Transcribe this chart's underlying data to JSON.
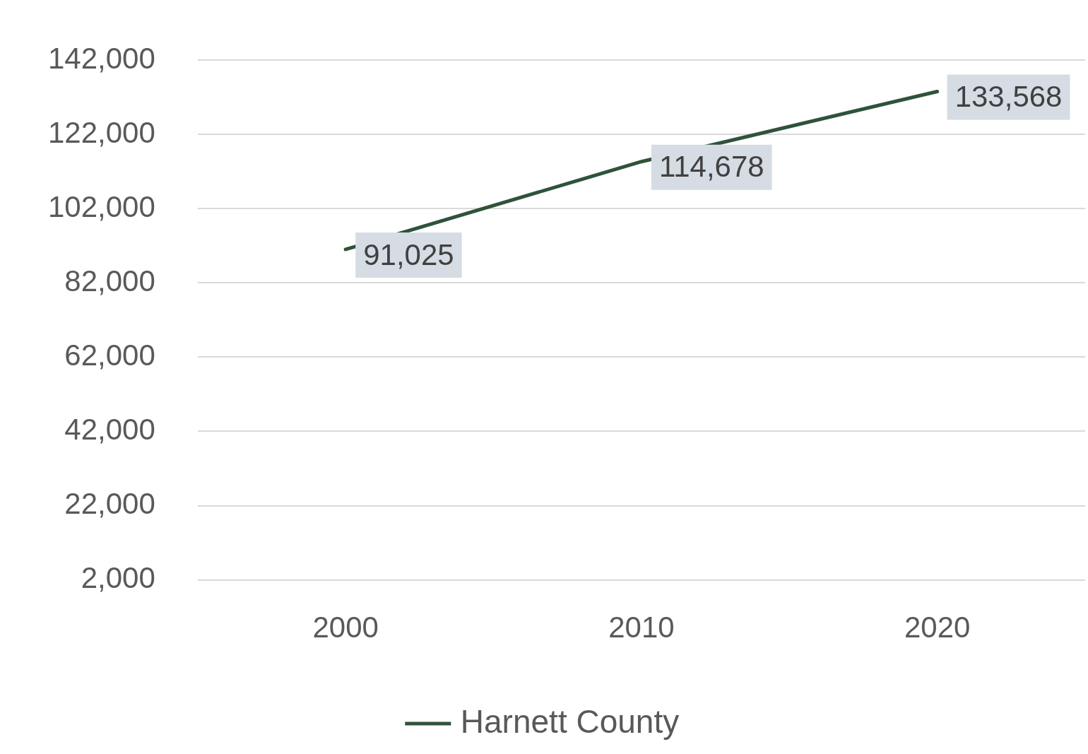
{
  "chart_data": {
    "type": "line",
    "categories": [
      "2000",
      "2010",
      "2020"
    ],
    "series": [
      {
        "name": "Harnett County",
        "color": "#2e5339",
        "values": [
          91025,
          114678,
          133568
        ],
        "value_labels": [
          "91,025",
          "114,678",
          "133,568"
        ]
      }
    ],
    "ylim": [
      2000,
      142000
    ],
    "yticks": [
      {
        "value": 2000,
        "label": "2,000"
      },
      {
        "value": 22000,
        "label": "22,000"
      },
      {
        "value": 42000,
        "label": "42,000"
      },
      {
        "value": 62000,
        "label": "62,000"
      },
      {
        "value": 82000,
        "label": "82,000"
      },
      {
        "value": 102000,
        "label": "102,000"
      },
      {
        "value": 122000,
        "label": "122,000"
      },
      {
        "value": 142000,
        "label": "142,000"
      }
    ],
    "grid": "y",
    "legend": "bottom",
    "marker": "none",
    "line_style": "solid"
  }
}
